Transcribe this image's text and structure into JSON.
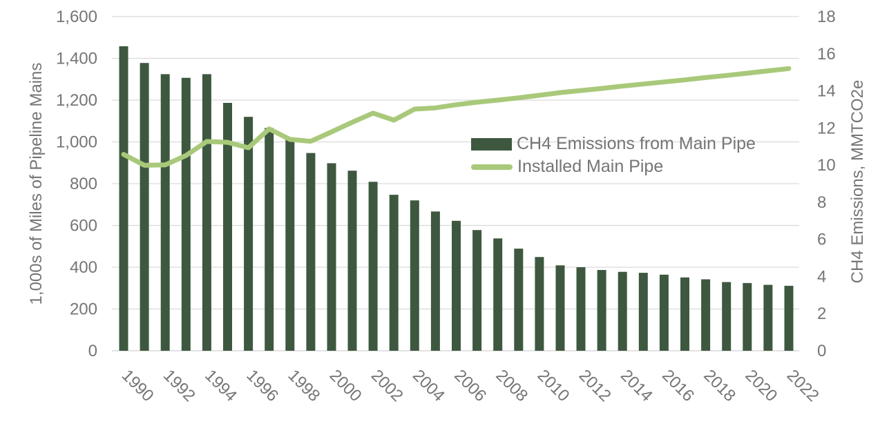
{
  "chart_data": {
    "type": "bar",
    "subtype": "combo-bar-line",
    "categories": [
      1990,
      1991,
      1992,
      1993,
      1994,
      1995,
      1996,
      1997,
      1998,
      1999,
      2000,
      2001,
      2002,
      2003,
      2004,
      2005,
      2006,
      2007,
      2008,
      2009,
      2010,
      2011,
      2012,
      2013,
      2014,
      2015,
      2016,
      2017,
      2018,
      2019,
      2020,
      2021,
      2022
    ],
    "series": [
      {
        "name": "CH4 Emissions from Main Pipe",
        "type": "bar",
        "axis": "right",
        "color": "#3E5840",
        "values": [
          16.4,
          15.5,
          14.9,
          14.7,
          14.9,
          13.35,
          12.6,
          12.0,
          11.4,
          10.65,
          10.1,
          9.7,
          9.1,
          8.4,
          8.1,
          7.5,
          7.0,
          6.5,
          6.05,
          5.5,
          5.05,
          4.6,
          4.5,
          4.35,
          4.25,
          4.2,
          4.1,
          3.95,
          3.85,
          3.7,
          3.65,
          3.55,
          3.5
        ]
      },
      {
        "name": "Installed Main Pipe",
        "type": "line",
        "axis": "left",
        "color": "#A9C97A",
        "values": [
          940,
          888,
          890,
          935,
          1002,
          998,
          972,
          1062,
          1012,
          1003,
          1048,
          1094,
          1138,
          1104,
          1157,
          1163,
          1178,
          1190,
          1200,
          1211,
          1223,
          1236,
          1246,
          1256,
          1267,
          1277,
          1287,
          1297,
          1308,
          1318,
          1329,
          1340,
          1351
        ]
      }
    ],
    "left_axis": {
      "title": "1,000s of Miles of Pipeline Mains",
      "min": 0,
      "max": 1600,
      "step": 200,
      "tick_labels": [
        "0",
        "200",
        "400",
        "600",
        "800",
        "1,000",
        "1,200",
        "1,400",
        "1,600"
      ]
    },
    "right_axis": {
      "title": "CH4 Emissions, MMTCO2e",
      "min": 0,
      "max": 18,
      "step": 2,
      "tick_labels": [
        "0",
        "2",
        "4",
        "6",
        "8",
        "10",
        "12",
        "14",
        "16",
        "18"
      ]
    },
    "x_axis": {
      "tick_labels": [
        "1990",
        "1992",
        "1994",
        "1996",
        "1998",
        "2000",
        "2002",
        "2004",
        "2006",
        "2008",
        "2010",
        "2012",
        "2014",
        "2016",
        "2018",
        "2020",
        "2022"
      ],
      "label_rotation_deg": 45
    },
    "grid": "horizontal",
    "legend_position": "inside-upper-right",
    "colors": {
      "grid_line": "#D9D9D9",
      "axis_text": "#757575",
      "background": "#FFFFFF"
    }
  },
  "legend": {
    "items": [
      {
        "label": "CH4 Emissions from Main Pipe",
        "swatch": "bar-swatch"
      },
      {
        "label": "Installed Main Pipe",
        "swatch": "line-swatch"
      }
    ]
  }
}
